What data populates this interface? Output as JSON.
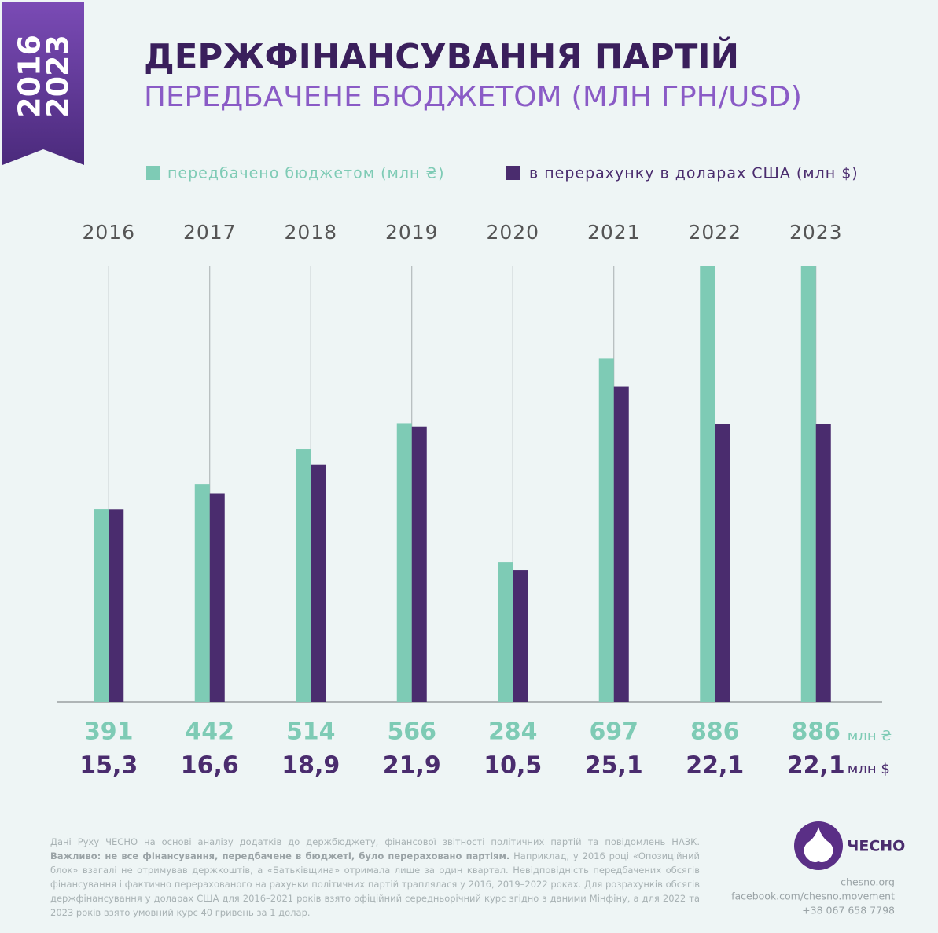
{
  "ribbon": [
    "2016",
    "2023"
  ],
  "chart_data": {
    "type": "bar",
    "title": "ДЕРЖФІНАНСУВАННЯ ПАРТІЙ",
    "subtitle": "ПЕРЕДБАЧЕНЕ БЮДЖЕТОМ (МЛН ГРН/USD)",
    "categories": [
      "2016",
      "2017",
      "2018",
      "2019",
      "2020",
      "2021",
      "2022",
      "2023"
    ],
    "series": [
      {
        "name": "передбачено бюджетом (млн ₴)",
        "color": "#7ecbb5",
        "unit": "млн ₴",
        "values": [
          391,
          442,
          514,
          566,
          284,
          697,
          886,
          886
        ]
      },
      {
        "name": "в перерахунку в доларах США (млн $)",
        "color": "#4a2c6e",
        "unit": "млн $",
        "axis": "y2",
        "values": [
          15.3,
          16.6,
          18.9,
          21.9,
          10.5,
          25.1,
          22.1,
          22.1
        ],
        "value_labels": [
          "15,3",
          "16,6",
          "18,9",
          "21,9",
          "10,5",
          "25,1",
          "22,1",
          "22,1"
        ]
      }
    ],
    "ylim": [
      0,
      886
    ],
    "y2lim": [
      0,
      34.7
    ]
  },
  "footnote": {
    "intro": "Дані Руху ЧЕСНО на основі аналізу додатків до держбюджету, фінансової звітності політичних партій та повідомлень НАЗК.",
    "important": "Важливо: не все фінансування, передбачене в бюджеті, було перераховано партіям.",
    "text": "Наприклад, у 2016 році «Опозиційний блок» взагалі не отримував держкоштів, а «Батьківщина» отримала лише за один квартал. Невідповідність передбачених обсягів фінансування і фактично перерахованого на рахунки політичних партій траплялася у 2016, 2019–2022 роках. Для розрахунків обсягів держфінансування у доларах США для 2016–2021 років взято офіційний середньорічний курс згідно з даними Мінфіну, а для 2022 та 2023 років взято умовний курс 40 гривень за 1 долар."
  },
  "brand": {
    "logo": "ЧЕСНО",
    "contacts": [
      "chesno.org",
      "facebook.com/chesno.movement",
      "+38 067 658 7798"
    ]
  }
}
